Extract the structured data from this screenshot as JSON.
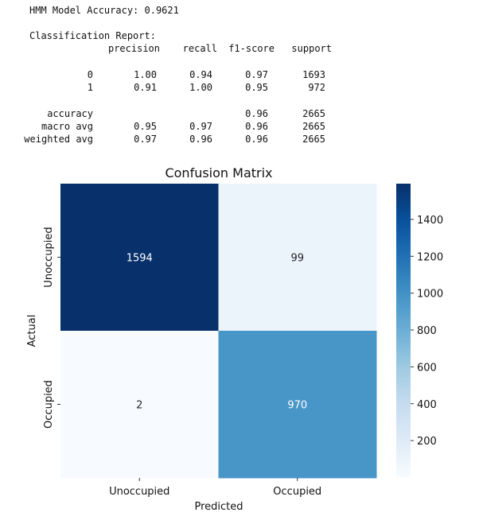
{
  "accuracy_line": "HMM Model Accuracy: 0.9621",
  "report_title": "Classification Report:",
  "report_headers": [
    "precision",
    "recall",
    "f1-score",
    "support"
  ],
  "report_rows": [
    {
      "label": "0",
      "precision": "1.00",
      "recall": "0.94",
      "f1": "0.97",
      "support": "1693"
    },
    {
      "label": "1",
      "precision": "0.91",
      "recall": "1.00",
      "f1": "0.95",
      "support": "972"
    },
    {
      "label": "accuracy",
      "precision": "",
      "recall": "",
      "f1": "0.96",
      "support": "2665"
    },
    {
      "label": "macro avg",
      "precision": "0.95",
      "recall": "0.97",
      "f1": "0.96",
      "support": "2665"
    },
    {
      "label": "weighted avg",
      "precision": "0.97",
      "recall": "0.96",
      "f1": "0.96",
      "support": "2665"
    }
  ],
  "chart_data": {
    "type": "heatmap",
    "title": "Confusion Matrix",
    "xlabel": "Predicted",
    "ylabel": "Actual",
    "x_categories": [
      "Unoccupied",
      "Occupied"
    ],
    "y_categories": [
      "Unoccupied",
      "Occupied"
    ],
    "values": [
      [
        1594,
        99
      ],
      [
        2,
        970
      ]
    ],
    "colormap": "Blues",
    "vmin": 2,
    "vmax": 1594,
    "colorbar_ticks": [
      200,
      400,
      600,
      800,
      1000,
      1200,
      1400
    ],
    "colors": {
      "low": "#f7fbff",
      "high": "#08306b"
    }
  }
}
